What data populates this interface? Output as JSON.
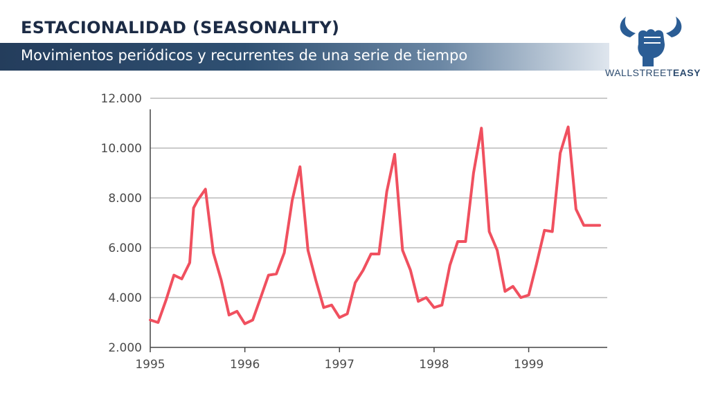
{
  "header": {
    "title": "ESTACIONALIDAD (SEASONALITY)",
    "subtitle": "Movimientos periódicos y recurrentes de una serie de tiempo"
  },
  "brand": {
    "name_light": "WALLSTREET",
    "name_bold": "EASY",
    "icon": "bull-fist-logo-icon",
    "color": "#2b5d95"
  },
  "chart_data": {
    "type": "line",
    "title": "",
    "xlabel": "",
    "ylabel": "",
    "xlim": [
      1995.0,
      1999.83
    ],
    "ylim": [
      2000,
      12000
    ],
    "grid": true,
    "line_color": "#f0505f",
    "y_ticks": [
      {
        "value": 2000,
        "label": "2.000"
      },
      {
        "value": 4000,
        "label": "4.000"
      },
      {
        "value": 6000,
        "label": "6.000"
      },
      {
        "value": 8000,
        "label": "8.000"
      },
      {
        "value": 10000,
        "label": "10.000"
      },
      {
        "value": 12000,
        "label": "12.000"
      }
    ],
    "x_ticks": [
      {
        "value": 1995,
        "label": "1995"
      },
      {
        "value": 1996,
        "label": "1996"
      },
      {
        "value": 1997,
        "label": "1997"
      },
      {
        "value": 1998,
        "label": "1998"
      },
      {
        "value": 1999,
        "label": "1999"
      }
    ],
    "series": [
      {
        "x": [
          1995.0,
          1995.083,
          1995.167,
          1995.25,
          1995.333,
          1995.417,
          1995.458,
          1995.5,
          1995.583,
          1995.667,
          1995.75,
          1995.833,
          1995.917,
          1996.0,
          1996.083,
          1996.167,
          1996.25,
          1996.333,
          1996.417,
          1996.5,
          1996.583,
          1996.667,
          1996.75,
          1996.833,
          1996.917,
          1997.0,
          1997.083,
          1997.167,
          1997.25,
          1997.333,
          1997.417,
          1997.5,
          1997.583,
          1997.667,
          1997.75,
          1997.833,
          1997.917,
          1998.0,
          1998.083,
          1998.167,
          1998.25,
          1998.333,
          1998.417,
          1998.5,
          1998.583,
          1998.667,
          1998.75,
          1998.833,
          1998.917,
          1999.0,
          1999.083,
          1999.167,
          1999.25,
          1999.333,
          1999.417,
          1999.5,
          1999.583,
          1999.667,
          1999.75
        ],
        "values": [
          3100,
          3000,
          3900,
          4900,
          4750,
          5400,
          7600,
          7900,
          8350,
          5800,
          4700,
          3300,
          3450,
          2950,
          3100,
          4000,
          4900,
          4950,
          5800,
          7900,
          9250,
          5900,
          4700,
          3600,
          3700,
          3200,
          3350,
          4600,
          5100,
          5750,
          5750,
          8250,
          9750,
          5900,
          5100,
          3850,
          4000,
          3600,
          3700,
          5300,
          6250,
          6250,
          9000,
          10800,
          6650,
          5900,
          4250,
          4450,
          4000,
          4100,
          5350,
          6700,
          6650,
          9800,
          10850,
          7550,
          6900,
          6900,
          6900
        ]
      }
    ]
  }
}
